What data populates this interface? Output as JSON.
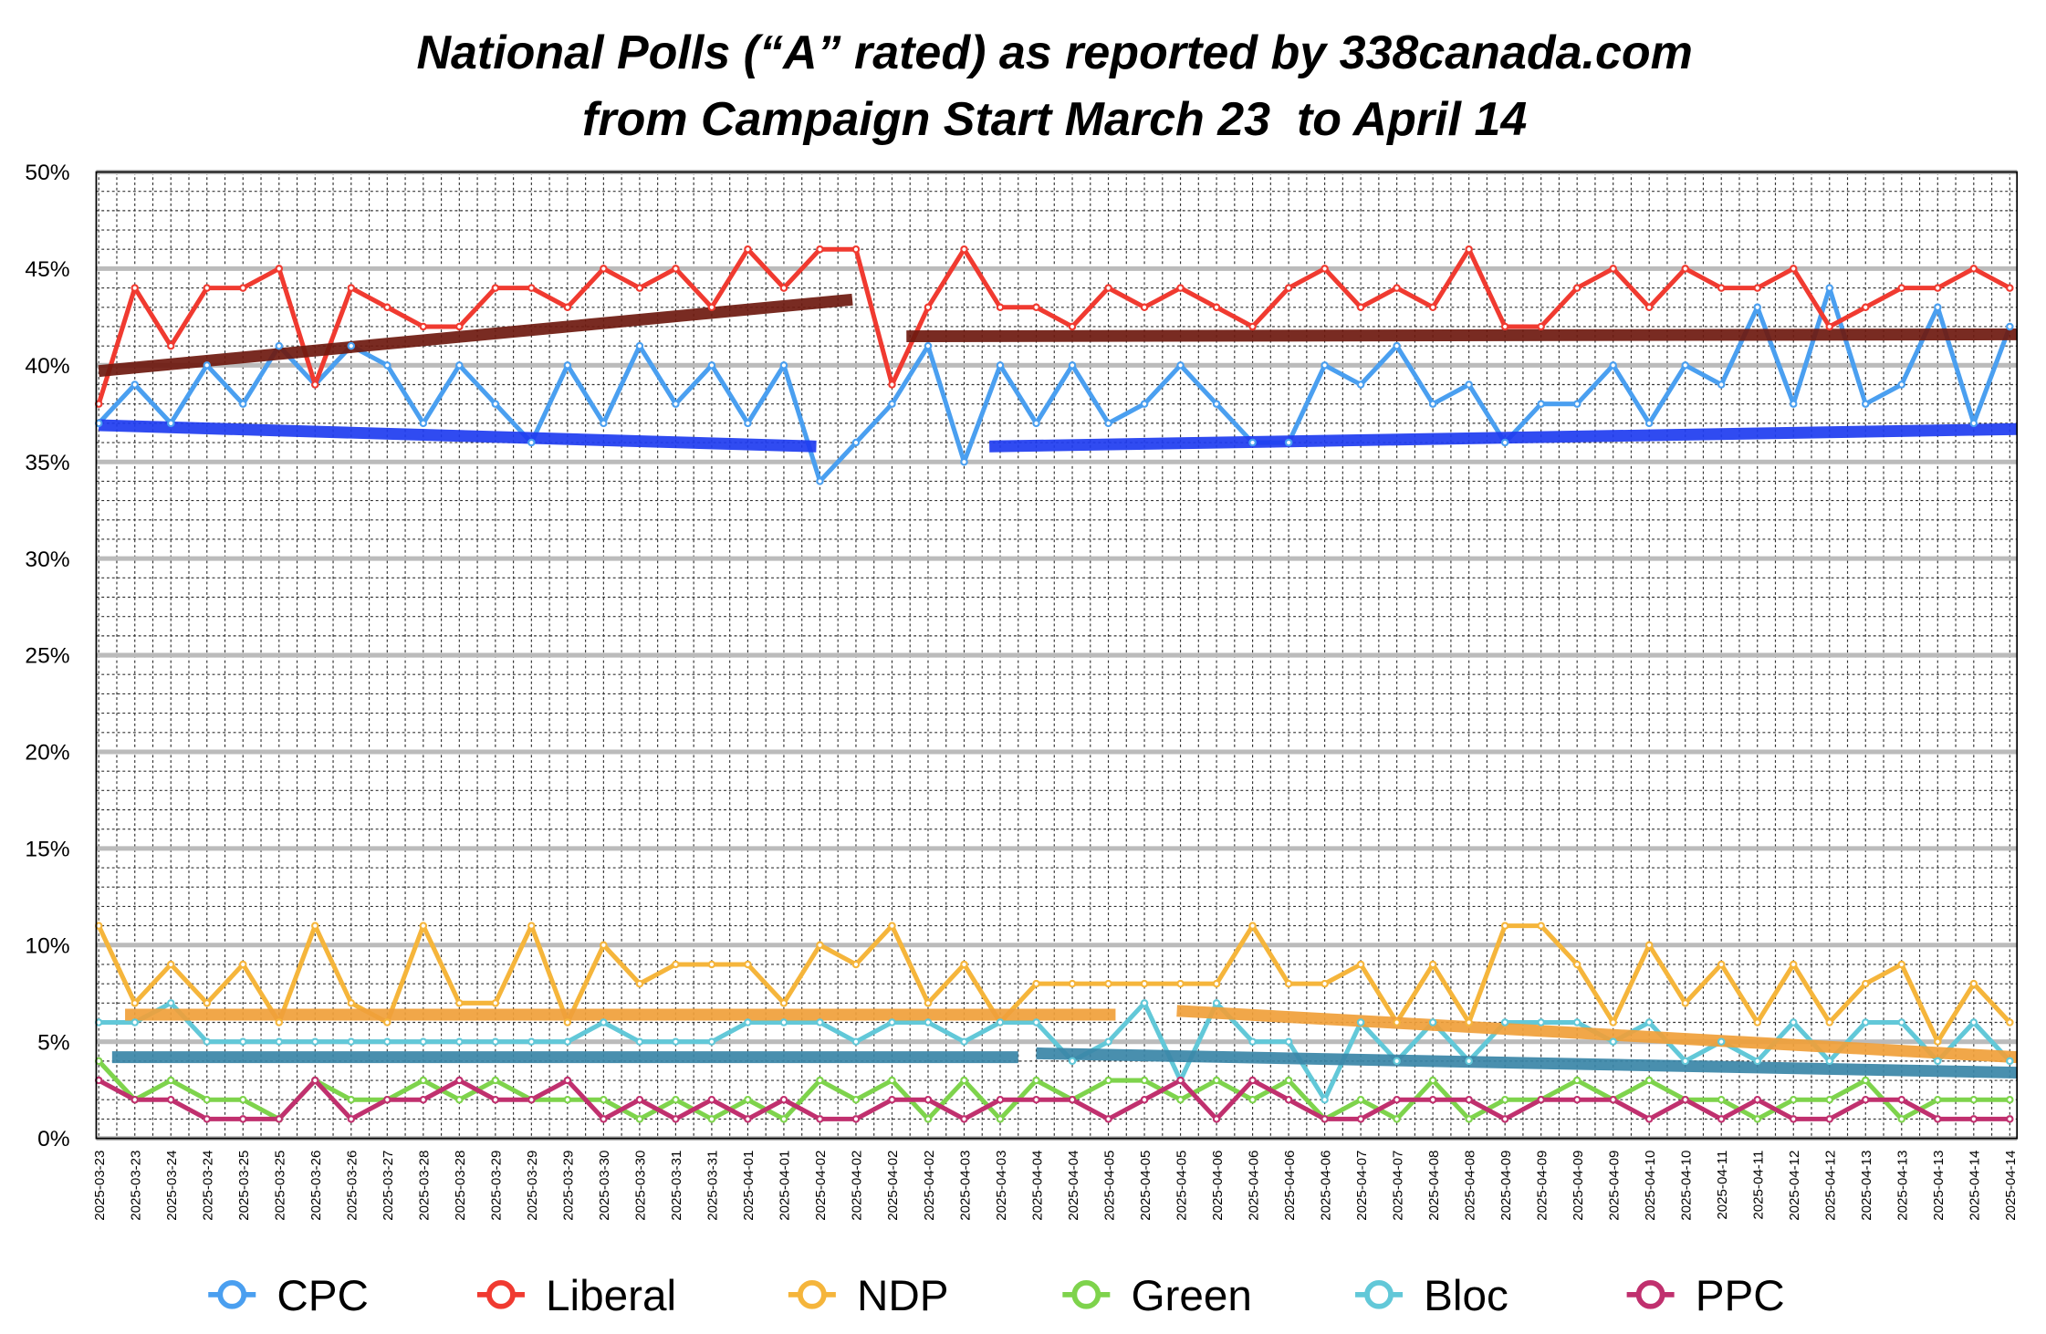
{
  "chart_data": {
    "type": "line",
    "title": "National Polls (“A” rated) as reported by 338canada.com",
    "subtitle": "from Campaign Start March 23  to April 14",
    "categories": [
      "2025-03-23",
      "2025-03-23",
      "2025-03-24",
      "2025-03-24",
      "2025-03-25",
      "2025-03-25",
      "2025-03-26",
      "2025-03-26",
      "2025-03-27",
      "2025-03-28",
      "2025-03-28",
      "2025-03-29",
      "2025-03-29",
      "2025-03-29",
      "2025-03-30",
      "2025-03-30",
      "2025-03-31",
      "2025-03-31",
      "2025-04-01",
      "2025-04-01",
      "2025-04-02",
      "2025-04-02",
      "2025-04-02",
      "2025-04-02",
      "2025-04-03",
      "2025-04-03",
      "2025-04-04",
      "2025-04-04",
      "2025-04-05",
      "2025-04-05",
      "2025-04-05",
      "2025-04-06",
      "2025-04-06",
      "2025-04-06",
      "2025-04-06",
      "2025-04-07",
      "2025-04-07",
      "2025-04-08",
      "2025-04-08",
      "2025-04-09",
      "2025-04-09",
      "2025-04-09",
      "2025-04-09",
      "2025-04-10",
      "2025-04-10",
      "2025-04-11",
      "2025-04-11",
      "2025-04-12",
      "2025-04-12",
      "2025-04-13",
      "2025-04-13",
      "2025-04-13",
      "2025-04-14",
      "2025-04-14"
    ],
    "series": [
      {
        "name": "CPC",
        "color": "#4a9ff0",
        "values": [
          37,
          39,
          37,
          40,
          38,
          41,
          39,
          41,
          40,
          37,
          40,
          38,
          36,
          40,
          37,
          41,
          38,
          40,
          37,
          40,
          34,
          36,
          38,
          41,
          35,
          40,
          37,
          40,
          37,
          38,
          40,
          38,
          36,
          36,
          40,
          39,
          41,
          38,
          39,
          36,
          38,
          38,
          40,
          37,
          40,
          39,
          43,
          38,
          44,
          38,
          39,
          43,
          37,
          42
        ]
      },
      {
        "name": "Liberal",
        "color": "#f03a30",
        "values": [
          38,
          44,
          41,
          44,
          44,
          45,
          39,
          44,
          43,
          42,
          42,
          44,
          44,
          43,
          45,
          44,
          45,
          43,
          46,
          44,
          46,
          46,
          39,
          43,
          46,
          43,
          43,
          42,
          44,
          43,
          44,
          43,
          42,
          44,
          45,
          43,
          44,
          43,
          46,
          42,
          42,
          44,
          45,
          43,
          45,
          44,
          44,
          45,
          42,
          43,
          44,
          44,
          45,
          44
        ]
      },
      {
        "name": "NDP",
        "color": "#f5b53b",
        "values": [
          11,
          7,
          9,
          7,
          9,
          6,
          11,
          7,
          6,
          11,
          7,
          7,
          11,
          6,
          10,
          8,
          9,
          9,
          9,
          7,
          10,
          9,
          11,
          7,
          9,
          6,
          8,
          8,
          8,
          8,
          8,
          8,
          11,
          8,
          8,
          9,
          6,
          9,
          6,
          11,
          11,
          9,
          6,
          10,
          7,
          9,
          6,
          9,
          6,
          8,
          9,
          5,
          8,
          6
        ]
      },
      {
        "name": "Green",
        "color": "#7ed34c",
        "values": [
          4,
          2,
          3,
          2,
          2,
          1,
          3,
          2,
          2,
          3,
          2,
          3,
          2,
          2,
          2,
          1,
          2,
          1,
          2,
          1,
          3,
          2,
          3,
          1,
          3,
          1,
          3,
          2,
          3,
          3,
          2,
          3,
          2,
          3,
          1,
          2,
          1,
          3,
          1,
          2,
          2,
          3,
          2,
          3,
          2,
          2,
          1,
          2,
          2,
          3,
          1,
          2,
          2,
          2
        ]
      },
      {
        "name": "Bloc",
        "color": "#62c8d8",
        "values": [
          6,
          6,
          7,
          5,
          5,
          5,
          5,
          5,
          5,
          5,
          5,
          5,
          5,
          5,
          6,
          5,
          5,
          5,
          6,
          6,
          6,
          5,
          6,
          6,
          5,
          6,
          6,
          4,
          5,
          7,
          3,
          7,
          5,
          5,
          2,
          6,
          4,
          6,
          4,
          6,
          6,
          6,
          5,
          6,
          4,
          5,
          4,
          6,
          4,
          6,
          6,
          4,
          6,
          4
        ]
      },
      {
        "name": "PPC",
        "color": "#c0306e",
        "values": [
          3,
          2,
          2,
          1,
          1,
          1,
          3,
          1,
          2,
          2,
          3,
          2,
          2,
          3,
          1,
          2,
          1,
          2,
          1,
          2,
          1,
          1,
          2,
          2,
          1,
          2,
          2,
          2,
          1,
          2,
          3,
          1,
          3,
          2,
          1,
          1,
          2,
          2,
          2,
          1,
          2,
          2,
          2,
          1,
          2,
          1,
          2,
          1,
          1,
          2,
          2,
          1,
          1,
          1
        ]
      }
    ],
    "trend_lines": [
      {
        "color": "#6e1a10",
        "x": [
          0,
          20.9
        ],
        "values": [
          39.7,
          43.4
        ]
      },
      {
        "color": "#6e1a10",
        "x": [
          22.4,
          53.2
        ],
        "values": [
          41.5,
          41.6
        ]
      },
      {
        "color": "#1f3cf0",
        "x": [
          0,
          19.9
        ],
        "values": [
          36.9,
          35.8
        ]
      },
      {
        "color": "#1f3cf0",
        "x": [
          24.7,
          53.2
        ],
        "values": [
          35.8,
          36.7
        ]
      },
      {
        "color": "#f0a03a",
        "x": [
          0.73,
          28.2
        ],
        "values": [
          6.4,
          6.4
        ]
      },
      {
        "color": "#f0a03a",
        "x": [
          29.9,
          53.2
        ],
        "values": [
          6.6,
          4.2
        ]
      },
      {
        "color": "#3a86a8",
        "x": [
          0.37,
          25.5
        ],
        "values": [
          4.2,
          4.2
        ]
      },
      {
        "color": "#3a86a8",
        "x": [
          26,
          53.2
        ],
        "values": [
          4.4,
          3.4
        ]
      }
    ],
    "xlim": [
      -0.07,
      53.2
    ],
    "ylim": [
      0,
      50
    ],
    "yticks": [
      {
        "value": 0,
        "label": "0%"
      },
      {
        "value": 5,
        "label": "5%"
      },
      {
        "value": 10,
        "label": "10%"
      },
      {
        "value": 15,
        "label": "15%"
      },
      {
        "value": 20,
        "label": "20%"
      },
      {
        "value": 25,
        "label": "25%"
      },
      {
        "value": 30,
        "label": "30%"
      },
      {
        "value": 35,
        "label": "35%"
      },
      {
        "value": 40,
        "label": "40%"
      },
      {
        "value": 45,
        "label": "45%"
      },
      {
        "value": 50,
        "label": "50%"
      }
    ],
    "grid": true,
    "legend": "bottom"
  }
}
